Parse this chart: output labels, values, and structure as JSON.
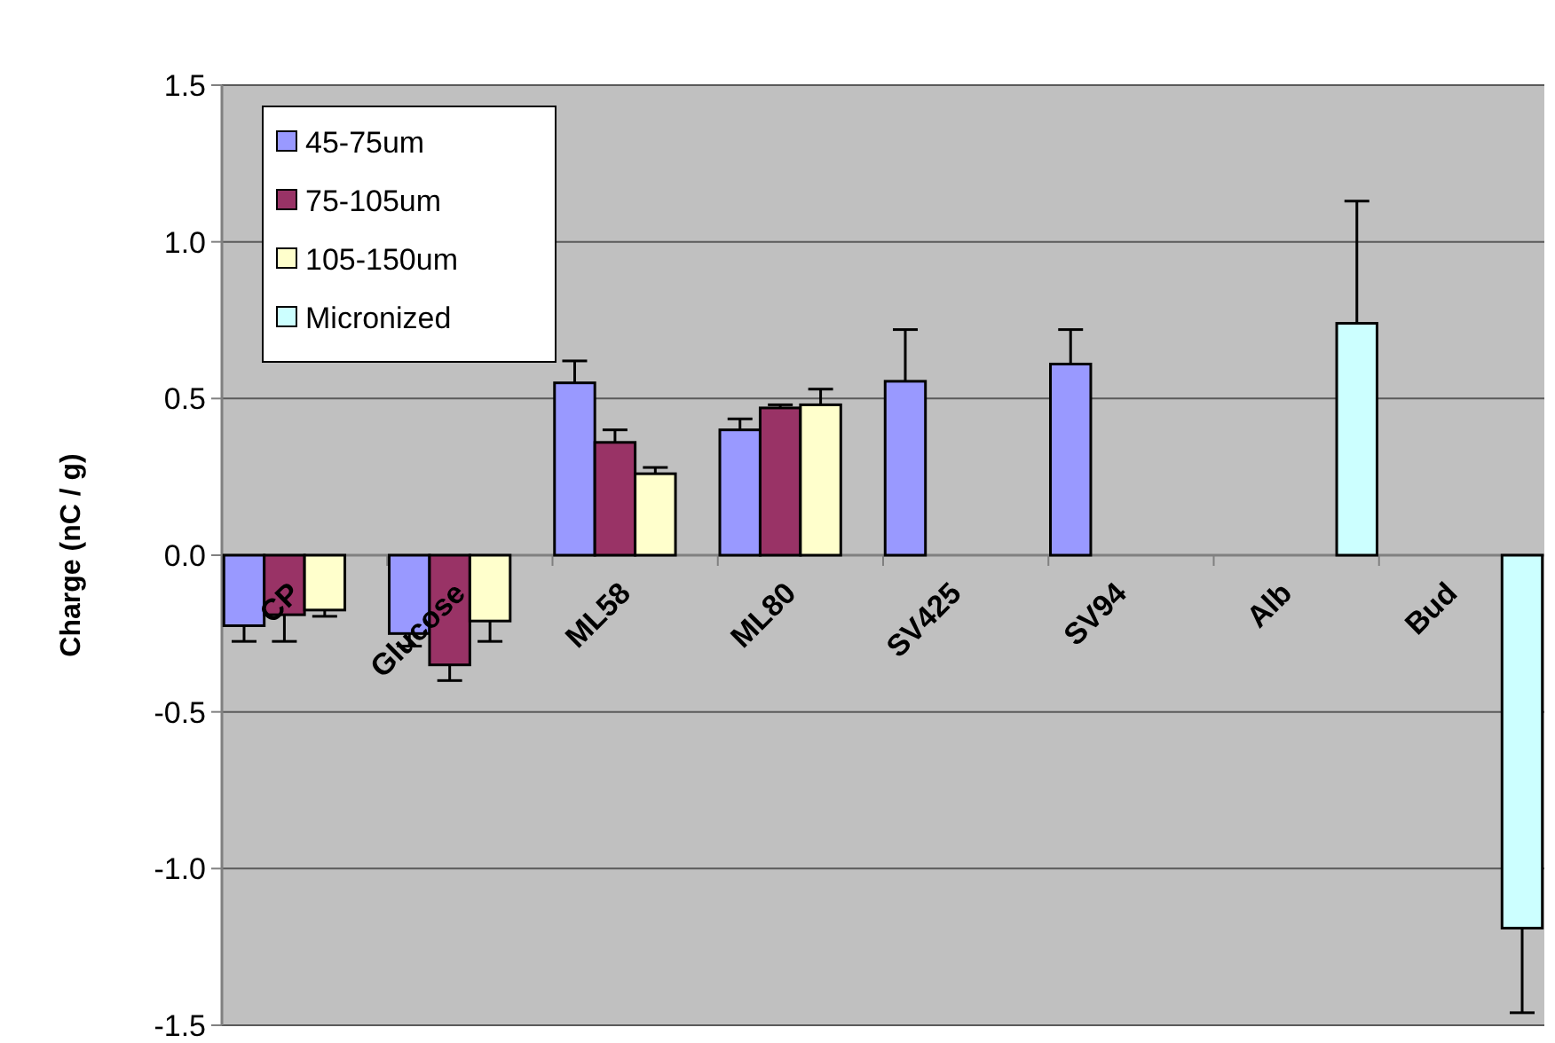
{
  "chart_data": {
    "type": "bar",
    "ylabel": "Charge (nC / g)",
    "categories": [
      "CP",
      "Glucose",
      "ML58",
      "ML80",
      "SV425",
      "SV94",
      "Alb",
      "Bud"
    ],
    "series": [
      {
        "name": "45-75um",
        "color": "#9999ff",
        "values": [
          -0.225,
          -0.25,
          0.55,
          0.4,
          0.555,
          0.61,
          null,
          null
        ],
        "errors": [
          0.05,
          0.04,
          0.07,
          0.035,
          0.165,
          0.11,
          null,
          null
        ]
      },
      {
        "name": "75-105um",
        "color": "#993366",
        "values": [
          -0.19,
          -0.35,
          0.36,
          0.47,
          null,
          null,
          null,
          null
        ],
        "errors": [
          0.085,
          0.05,
          0.04,
          0.01,
          null,
          null,
          null,
          null
        ]
      },
      {
        "name": "105-150um",
        "color": "#ffffcc",
        "values": [
          -0.175,
          -0.21,
          0.26,
          0.48,
          null,
          null,
          null,
          null
        ],
        "errors": [
          0.02,
          0.065,
          0.02,
          0.05,
          null,
          null,
          null,
          null
        ]
      },
      {
        "name": "Micronized",
        "color": "#ccffff",
        "values": [
          null,
          null,
          null,
          null,
          null,
          null,
          0.74,
          -1.19
        ],
        "errors": [
          null,
          null,
          null,
          null,
          null,
          null,
          0.39,
          0.27
        ]
      }
    ],
    "ylim": [
      -1.5,
      1.5
    ],
    "yticks": [
      {
        "value": -1.5,
        "label": "-1.5"
      },
      {
        "value": -1,
        "label": "-1.0"
      },
      {
        "value": -0.5,
        "label": "-0.5"
      },
      {
        "value": 0,
        "label": "0.0"
      },
      {
        "value": 0.5,
        "label": "0.5"
      },
      {
        "value": 1,
        "label": "1.0"
      },
      {
        "value": 1.5,
        "label": "1.5"
      }
    ],
    "grid": "y",
    "legend": "top left"
  }
}
